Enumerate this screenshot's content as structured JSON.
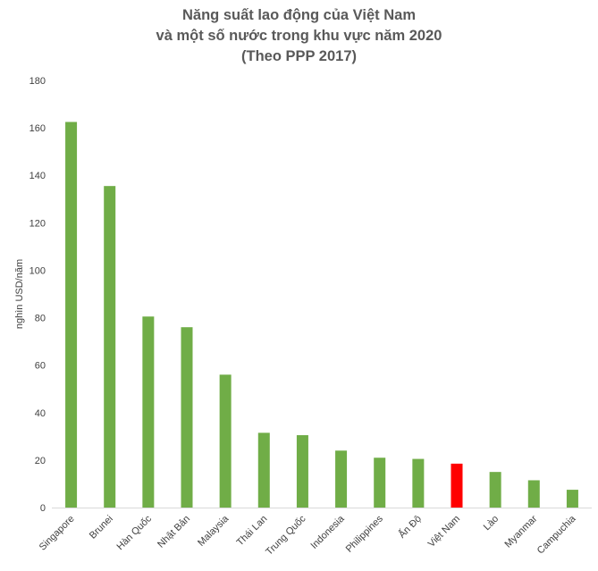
{
  "chart_data": {
    "type": "bar",
    "title": [
      "Năng suất lao động của Việt Nam",
      "và một số nước trong khu vực năm 2020",
      "(Theo PPP 2017)"
    ],
    "ylabel": "nghìn USD/năm",
    "xlabel": "",
    "ylim": [
      0,
      180
    ],
    "yticks": [
      0,
      20,
      40,
      60,
      80,
      100,
      120,
      140,
      160,
      180
    ],
    "categories": [
      "Singapore",
      "Brunei",
      "Hàn Quốc",
      "Nhật Bản",
      "Malaysia",
      "Thái Lan",
      "Trung Quốc",
      "Indonesia",
      "Philippines",
      "Ấn Độ",
      "Việt Nam",
      "Lào",
      "Myanmar",
      "Campuchia"
    ],
    "values": [
      162.5,
      135.5,
      80.5,
      76,
      56,
      31.5,
      30.5,
      24,
      21,
      20.5,
      18.5,
      15,
      11.5,
      7.5
    ],
    "bar_colors": [
      "#70ad47",
      "#70ad47",
      "#70ad47",
      "#70ad47",
      "#70ad47",
      "#70ad47",
      "#70ad47",
      "#70ad47",
      "#70ad47",
      "#70ad47",
      "#ff0000",
      "#70ad47",
      "#70ad47",
      "#70ad47"
    ],
    "grid": false,
    "legend": "none"
  }
}
